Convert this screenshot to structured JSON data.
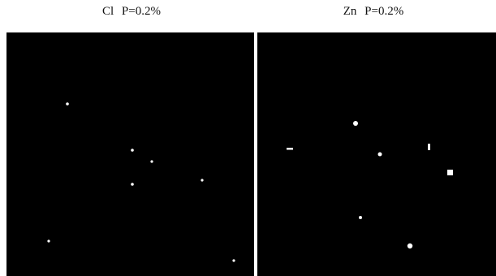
{
  "panels": [
    {
      "title": "Cl P=0.2%"
    },
    {
      "title": "Zn P=0.2%"
    }
  ]
}
